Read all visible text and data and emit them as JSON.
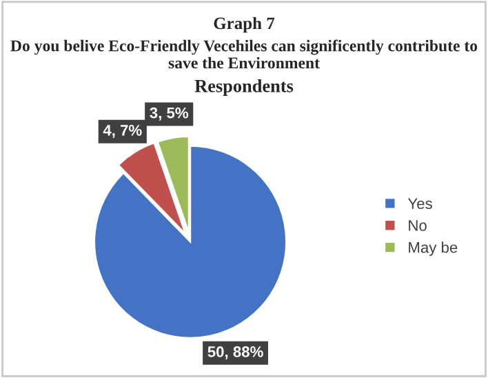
{
  "chart_data": {
    "type": "pie",
    "title": "Graph 7",
    "subtitle": "Do you belive Eco-Friendly Vecehiles can significently contribute to save the Environment",
    "annotations": [
      "Respondents"
    ],
    "categories": [
      "Yes",
      "No",
      "May be"
    ],
    "values": [
      50,
      4,
      3
    ],
    "colors": [
      "#4472c4",
      "#c0504d",
      "#9bbb59"
    ],
    "value_labels": [
      "50, 88%",
      "4, 7%",
      "3, 5%"
    ],
    "legend": "right"
  }
}
